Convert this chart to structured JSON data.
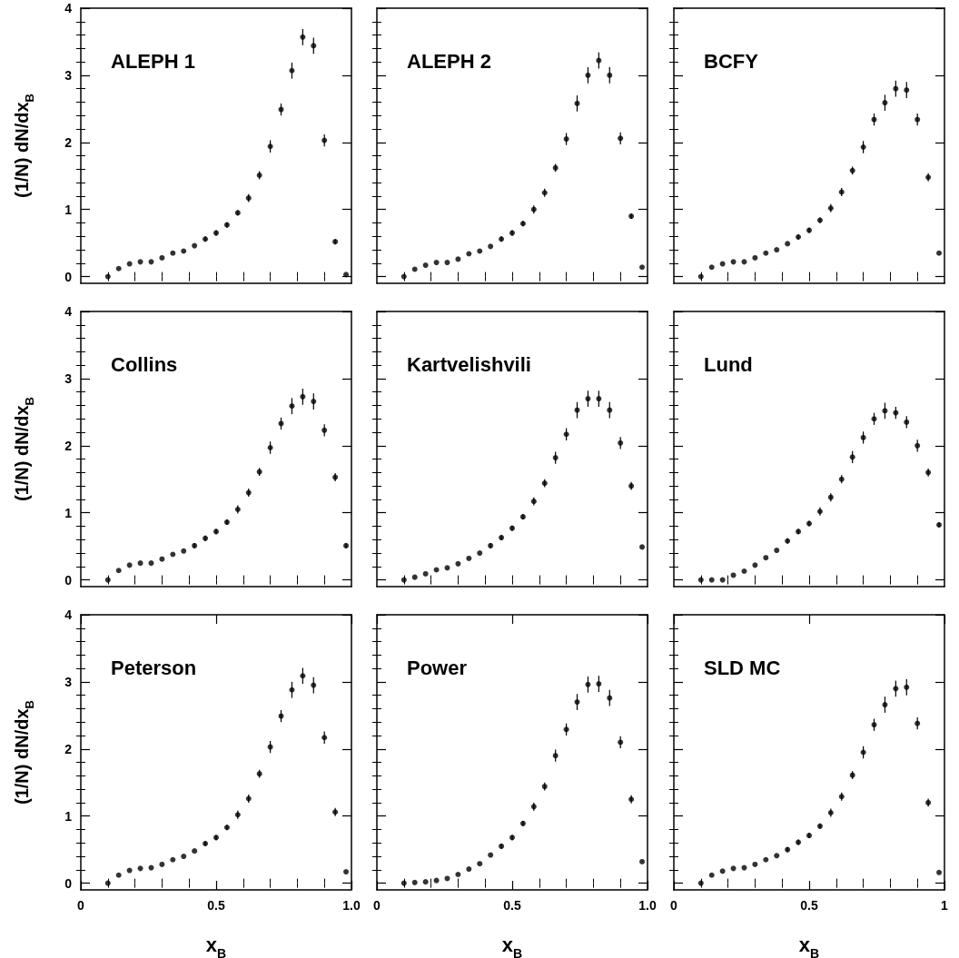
{
  "chart_data": [
    {
      "type": "scatter",
      "title": "ALEPH 1",
      "ylabel": "(1/N) dN/dx$_{B}$",
      "marker": "circle",
      "tick_labels": "y",
      "x": [
        0.1,
        0.14,
        0.18,
        0.22,
        0.26,
        0.3,
        0.34,
        0.38,
        0.42,
        0.46,
        0.5,
        0.54,
        0.58,
        0.62,
        0.66,
        0.7,
        0.74,
        0.78,
        0.82,
        0.86,
        0.9,
        0.94,
        0.98
      ],
      "series": [
        {
          "color": "#000000",
          "values": [
            0.0,
            0.12,
            0.19,
            0.22,
            0.22,
            0.28,
            0.35,
            0.38,
            0.46,
            0.56,
            0.65,
            0.77,
            0.95,
            1.17,
            1.51,
            1.94,
            2.49,
            3.07,
            3.57,
            3.44,
            2.03,
            0.52,
            0.03
          ],
          "errors": [
            null,
            null,
            null,
            null,
            null,
            null,
            null,
            null,
            null,
            0.04,
            0.04,
            0.04,
            0.04,
            0.06,
            0.06,
            0.09,
            0.09,
            0.12,
            0.12,
            0.12,
            0.09,
            0.04,
            null
          ]
        }
      ],
      "xlim": [
        0,
        1
      ],
      "xticks": [
        {
          "value": 0.1,
          "label": null
        },
        {
          "value": 0.2,
          "label": null
        },
        {
          "value": 0.3,
          "label": null
        },
        {
          "value": 0.4,
          "label": null
        },
        {
          "value": 0.5,
          "label": null
        },
        {
          "value": 0.6,
          "label": null
        },
        {
          "value": 0.7,
          "label": null
        },
        {
          "value": 0.8,
          "label": null
        },
        {
          "value": 0.9,
          "label": null
        }
      ],
      "ylim": [
        -0.1,
        4
      ],
      "yticks": [
        {
          "value": 0,
          "label": "0"
        },
        {
          "value": 0.2,
          "label": null
        },
        {
          "value": 0.4,
          "label": null
        },
        {
          "value": 0.6,
          "label": null
        },
        {
          "value": 0.8,
          "label": null
        },
        1,
        {
          "value": 1.2,
          "label": null
        },
        {
          "value": 1.4,
          "label": null
        },
        {
          "value": 1.6,
          "label": null
        },
        {
          "value": 1.8,
          "label": null
        },
        2,
        {
          "value": 2.2,
          "label": null
        },
        {
          "value": 2.4,
          "label": null
        },
        {
          "value": 2.6,
          "label": null
        },
        {
          "value": 2.8,
          "label": null
        },
        3,
        {
          "value": 3.2,
          "label": null
        },
        {
          "value": 3.4,
          "label": null
        },
        {
          "value": 3.6,
          "label": null
        },
        {
          "value": 3.8,
          "label": null
        },
        4
      ]
    },
    {
      "type": "scatter",
      "title": "ALEPH 2",
      "marker": "circle",
      "tick_labels": false,
      "x": [
        0.1,
        0.14,
        0.18,
        0.22,
        0.26,
        0.3,
        0.34,
        0.38,
        0.42,
        0.46,
        0.5,
        0.54,
        0.58,
        0.62,
        0.66,
        0.7,
        0.74,
        0.78,
        0.82,
        0.86,
        0.9,
        0.94,
        0.98
      ],
      "series": [
        {
          "color": "#000000",
          "values": [
            0.0,
            0.11,
            0.17,
            0.21,
            0.21,
            0.26,
            0.34,
            0.38,
            0.45,
            0.56,
            0.65,
            0.79,
            1.0,
            1.25,
            1.62,
            2.05,
            2.58,
            3.0,
            3.22,
            3.0,
            2.06,
            0.9,
            0.14
          ],
          "errors": [
            null,
            null,
            null,
            null,
            null,
            null,
            null,
            null,
            null,
            0.04,
            0.04,
            0.04,
            0.06,
            0.06,
            0.06,
            0.09,
            0.12,
            0.12,
            0.12,
            0.12,
            0.09,
            0.04,
            null
          ]
        }
      ],
      "xlim": [
        0,
        1
      ],
      "xticks": [
        {
          "value": 0.1,
          "label": null
        },
        {
          "value": 0.2,
          "label": null
        },
        {
          "value": 0.3,
          "label": null
        },
        {
          "value": 0.4,
          "label": null
        },
        {
          "value": 0.5,
          "label": null
        },
        {
          "value": 0.6,
          "label": null
        },
        {
          "value": 0.7,
          "label": null
        },
        {
          "value": 0.8,
          "label": null
        },
        {
          "value": 0.9,
          "label": null
        }
      ],
      "ylim": [
        -0.1,
        4
      ],
      "yticks": [
        0,
        {
          "value": 0.2,
          "label": null
        },
        {
          "value": 0.4,
          "label": null
        },
        {
          "value": 0.6,
          "label": null
        },
        {
          "value": 0.8,
          "label": null
        },
        1,
        {
          "value": 1.2,
          "label": null
        },
        {
          "value": 1.4,
          "label": null
        },
        {
          "value": 1.6,
          "label": null
        },
        {
          "value": 1.8,
          "label": null
        },
        2,
        {
          "value": 2.2,
          "label": null
        },
        {
          "value": 2.4,
          "label": null
        },
        {
          "value": 2.6,
          "label": null
        },
        {
          "value": 2.8,
          "label": null
        },
        3,
        {
          "value": 3.2,
          "label": null
        },
        {
          "value": 3.4,
          "label": null
        },
        {
          "value": 3.6,
          "label": null
        },
        {
          "value": 3.8,
          "label": null
        },
        4
      ]
    },
    {
      "type": "scatter",
      "title": "BCFY",
      "marker": "circle",
      "tick_labels": false,
      "x": [
        0.1,
        0.14,
        0.18,
        0.22,
        0.26,
        0.3,
        0.34,
        0.38,
        0.42,
        0.46,
        0.5,
        0.54,
        0.58,
        0.62,
        0.66,
        0.7,
        0.74,
        0.78,
        0.82,
        0.86,
        0.9,
        0.94,
        0.98
      ],
      "series": [
        {
          "color": "#000000",
          "values": [
            0.0,
            0.14,
            0.19,
            0.22,
            0.22,
            0.28,
            0.35,
            0.4,
            0.49,
            0.59,
            0.69,
            0.84,
            1.02,
            1.26,
            1.58,
            1.93,
            2.34,
            2.59,
            2.8,
            2.78,
            2.34,
            1.48,
            0.35
          ],
          "errors": [
            null,
            null,
            null,
            null,
            null,
            null,
            null,
            null,
            null,
            0.04,
            0.04,
            0.04,
            0.06,
            0.06,
            0.06,
            0.09,
            0.09,
            0.12,
            0.12,
            0.12,
            0.09,
            0.06,
            null
          ]
        }
      ],
      "xlim": [
        0,
        1
      ],
      "xticks": [
        {
          "value": 0.1,
          "label": null
        },
        {
          "value": 0.2,
          "label": null
        },
        {
          "value": 0.3,
          "label": null
        },
        {
          "value": 0.4,
          "label": null
        },
        {
          "value": 0.5,
          "label": null
        },
        {
          "value": 0.6,
          "label": null
        },
        {
          "value": 0.7,
          "label": null
        },
        {
          "value": 0.8,
          "label": null
        },
        {
          "value": 0.9,
          "label": null
        }
      ],
      "ylim": [
        -0.1,
        4
      ],
      "yticks": [
        0,
        {
          "value": 0.2,
          "label": null
        },
        {
          "value": 0.4,
          "label": null
        },
        {
          "value": 0.6,
          "label": null
        },
        {
          "value": 0.8,
          "label": null
        },
        1,
        {
          "value": 1.2,
          "label": null
        },
        {
          "value": 1.4,
          "label": null
        },
        {
          "value": 1.6,
          "label": null
        },
        {
          "value": 1.8,
          "label": null
        },
        2,
        {
          "value": 2.2,
          "label": null
        },
        {
          "value": 2.4,
          "label": null
        },
        {
          "value": 2.6,
          "label": null
        },
        {
          "value": 2.8,
          "label": null
        },
        3,
        {
          "value": 3.2,
          "label": null
        },
        {
          "value": 3.4,
          "label": null
        },
        {
          "value": 3.6,
          "label": null
        },
        {
          "value": 3.8,
          "label": null
        },
        4
      ]
    },
    {
      "type": "scatter",
      "title": "Collins",
      "ylabel": "(1/N) dN/dx$_{B}$",
      "marker": "circle",
      "tick_labels": "y",
      "x": [
        0.1,
        0.14,
        0.18,
        0.22,
        0.26,
        0.3,
        0.34,
        0.38,
        0.42,
        0.46,
        0.5,
        0.54,
        0.58,
        0.62,
        0.66,
        0.7,
        0.74,
        0.78,
        0.82,
        0.86,
        0.9,
        0.94,
        0.98
      ],
      "series": [
        {
          "color": "#000000",
          "values": [
            0.0,
            0.14,
            0.22,
            0.25,
            0.25,
            0.31,
            0.38,
            0.43,
            0.51,
            0.62,
            0.72,
            0.86,
            1.05,
            1.3,
            1.61,
            1.97,
            2.33,
            2.59,
            2.73,
            2.66,
            2.23,
            1.53,
            0.51
          ],
          "errors": [
            null,
            null,
            null,
            null,
            null,
            null,
            null,
            null,
            0.04,
            0.04,
            0.04,
            0.04,
            0.06,
            0.06,
            0.06,
            0.09,
            0.09,
            0.12,
            0.12,
            0.12,
            0.09,
            0.06,
            0.04
          ]
        }
      ],
      "xlim": [
        0,
        1
      ],
      "xticks": [
        {
          "value": 0.1,
          "label": null
        },
        {
          "value": 0.2,
          "label": null
        },
        {
          "value": 0.3,
          "label": null
        },
        {
          "value": 0.4,
          "label": null
        },
        {
          "value": 0.5,
          "label": null
        },
        {
          "value": 0.6,
          "label": null
        },
        {
          "value": 0.7,
          "label": null
        },
        {
          "value": 0.8,
          "label": null
        },
        {
          "value": 0.9,
          "label": null
        }
      ],
      "ylim": [
        -0.1,
        4
      ],
      "yticks": [
        {
          "value": 0,
          "label": "0"
        },
        {
          "value": 0.2,
          "label": null
        },
        {
          "value": 0.4,
          "label": null
        },
        {
          "value": 0.6,
          "label": null
        },
        {
          "value": 0.8,
          "label": null
        },
        1,
        {
          "value": 1.2,
          "label": null
        },
        {
          "value": 1.4,
          "label": null
        },
        {
          "value": 1.6,
          "label": null
        },
        {
          "value": 1.8,
          "label": null
        },
        2,
        {
          "value": 2.2,
          "label": null
        },
        {
          "value": 2.4,
          "label": null
        },
        {
          "value": 2.6,
          "label": null
        },
        {
          "value": 2.8,
          "label": null
        },
        3,
        {
          "value": 3.2,
          "label": null
        },
        {
          "value": 3.4,
          "label": null
        },
        {
          "value": 3.6,
          "label": null
        },
        {
          "value": 3.8,
          "label": null
        },
        4
      ]
    },
    {
      "type": "scatter",
      "title": "Kartvelishvili",
      "marker": "circle",
      "tick_labels": false,
      "x": [
        0.1,
        0.14,
        0.18,
        0.22,
        0.26,
        0.3,
        0.34,
        0.38,
        0.42,
        0.46,
        0.5,
        0.54,
        0.58,
        0.62,
        0.66,
        0.7,
        0.74,
        0.78,
        0.82,
        0.86,
        0.9,
        0.94,
        0.98
      ],
      "series": [
        {
          "color": "#000000",
          "values": [
            0.0,
            0.04,
            0.09,
            0.15,
            0.18,
            0.24,
            0.32,
            0.4,
            0.51,
            0.63,
            0.77,
            0.94,
            1.17,
            1.44,
            1.82,
            2.17,
            2.53,
            2.7,
            2.7,
            2.53,
            2.04,
            1.4,
            0.49
          ],
          "errors": [
            null,
            null,
            null,
            null,
            null,
            null,
            null,
            null,
            0.04,
            0.04,
            0.04,
            0.04,
            0.06,
            0.06,
            0.09,
            0.09,
            0.12,
            0.12,
            0.12,
            0.12,
            0.09,
            0.06,
            null
          ]
        }
      ],
      "xlim": [
        0,
        1
      ],
      "xticks": [
        {
          "value": 0.1,
          "label": null
        },
        {
          "value": 0.2,
          "label": null
        },
        {
          "value": 0.3,
          "label": null
        },
        {
          "value": 0.4,
          "label": null
        },
        {
          "value": 0.5,
          "label": null
        },
        {
          "value": 0.6,
          "label": null
        },
        {
          "value": 0.7,
          "label": null
        },
        {
          "value": 0.8,
          "label": null
        },
        {
          "value": 0.9,
          "label": null
        }
      ],
      "ylim": [
        -0.1,
        4
      ],
      "yticks": [
        0,
        {
          "value": 0.2,
          "label": null
        },
        {
          "value": 0.4,
          "label": null
        },
        {
          "value": 0.6,
          "label": null
        },
        {
          "value": 0.8,
          "label": null
        },
        1,
        {
          "value": 1.2,
          "label": null
        },
        {
          "value": 1.4,
          "label": null
        },
        {
          "value": 1.6,
          "label": null
        },
        {
          "value": 1.8,
          "label": null
        },
        2,
        {
          "value": 2.2,
          "label": null
        },
        {
          "value": 2.4,
          "label": null
        },
        {
          "value": 2.6,
          "label": null
        },
        {
          "value": 2.8,
          "label": null
        },
        3,
        {
          "value": 3.2,
          "label": null
        },
        {
          "value": 3.4,
          "label": null
        },
        {
          "value": 3.6,
          "label": null
        },
        {
          "value": 3.8,
          "label": null
        },
        4
      ]
    },
    {
      "type": "scatter",
      "title": "Lund",
      "marker": "circle",
      "tick_labels": false,
      "x": [
        0.1,
        0.14,
        0.18,
        0.22,
        0.26,
        0.3,
        0.34,
        0.38,
        0.42,
        0.46,
        0.5,
        0.54,
        0.58,
        0.62,
        0.66,
        0.7,
        0.74,
        0.78,
        0.82,
        0.86,
        0.9,
        0.94,
        0.98
      ],
      "series": [
        {
          "color": "#000000",
          "values": [
            0.0,
            0.0,
            0.0,
            0.07,
            0.13,
            0.22,
            0.33,
            0.44,
            0.58,
            0.72,
            0.84,
            1.02,
            1.23,
            1.5,
            1.83,
            2.12,
            2.4,
            2.52,
            2.49,
            2.35,
            2.0,
            1.6,
            0.82
          ],
          "errors": [
            null,
            null,
            null,
            null,
            null,
            null,
            null,
            null,
            0.04,
            0.04,
            0.04,
            0.06,
            0.06,
            0.06,
            0.09,
            0.09,
            0.09,
            0.12,
            0.09,
            0.09,
            0.09,
            0.06,
            0.04
          ]
        }
      ],
      "xlim": [
        0,
        1
      ],
      "xticks": [
        {
          "value": 0.1,
          "label": null
        },
        {
          "value": 0.2,
          "label": null
        },
        {
          "value": 0.3,
          "label": null
        },
        {
          "value": 0.4,
          "label": null
        },
        {
          "value": 0.5,
          "label": null
        },
        {
          "value": 0.6,
          "label": null
        },
        {
          "value": 0.7,
          "label": null
        },
        {
          "value": 0.8,
          "label": null
        },
        {
          "value": 0.9,
          "label": null
        }
      ],
      "ylim": [
        -0.1,
        4
      ],
      "yticks": [
        0,
        {
          "value": 0.2,
          "label": null
        },
        {
          "value": 0.4,
          "label": null
        },
        {
          "value": 0.6,
          "label": null
        },
        {
          "value": 0.8,
          "label": null
        },
        1,
        {
          "value": 1.2,
          "label": null
        },
        {
          "value": 1.4,
          "label": null
        },
        {
          "value": 1.6,
          "label": null
        },
        {
          "value": 1.8,
          "label": null
        },
        2,
        {
          "value": 2.2,
          "label": null
        },
        {
          "value": 2.4,
          "label": null
        },
        {
          "value": 2.6,
          "label": null
        },
        {
          "value": 2.8,
          "label": null
        },
        3,
        {
          "value": 3.2,
          "label": null
        },
        {
          "value": 3.4,
          "label": null
        },
        {
          "value": 3.6,
          "label": null
        },
        {
          "value": 3.8,
          "label": null
        },
        4
      ]
    },
    {
      "type": "scatter",
      "title": "Peterson",
      "ylabel": "(1/N) dN/dx$_{B}$",
      "xlabel": "x$_{B}$",
      "marker": "circle",
      "x": [
        0.1,
        0.14,
        0.18,
        0.22,
        0.26,
        0.3,
        0.34,
        0.38,
        0.42,
        0.46,
        0.5,
        0.54,
        0.58,
        0.62,
        0.66,
        0.7,
        0.74,
        0.78,
        0.82,
        0.86,
        0.9,
        0.94,
        0.98
      ],
      "series": [
        {
          "color": "#000000",
          "values": [
            0.0,
            0.12,
            0.19,
            0.22,
            0.23,
            0.28,
            0.35,
            0.4,
            0.48,
            0.59,
            0.68,
            0.83,
            1.02,
            1.26,
            1.63,
            2.03,
            2.49,
            2.88,
            3.09,
            2.95,
            2.17,
            1.06,
            0.17
          ],
          "errors": [
            null,
            null,
            null,
            null,
            null,
            null,
            null,
            null,
            null,
            0.04,
            0.04,
            0.04,
            0.06,
            0.06,
            0.06,
            0.09,
            0.09,
            0.12,
            0.12,
            0.12,
            0.09,
            0.06,
            null
          ]
        }
      ],
      "xlim": [
        0,
        1
      ],
      "xticks": [
        {
          "value": 0,
          "label": "0"
        },
        {
          "value": 0.1,
          "label": null
        },
        {
          "value": 0.2,
          "label": null
        },
        {
          "value": 0.3,
          "label": null
        },
        {
          "value": 0.4,
          "label": null
        },
        {
          "value": 0.5,
          "label": "0.5"
        },
        {
          "value": 0.6,
          "label": null
        },
        {
          "value": 0.7,
          "label": null
        },
        {
          "value": 0.8,
          "label": null
        },
        {
          "value": 0.9,
          "label": null
        },
        {
          "value": 1,
          "label": "1.0"
        }
      ],
      "ylim": [
        -0.1,
        4
      ],
      "yticks": [
        {
          "value": 0,
          "label": "0"
        },
        {
          "value": 0.2,
          "label": null
        },
        {
          "value": 0.4,
          "label": null
        },
        {
          "value": 0.6,
          "label": null
        },
        {
          "value": 0.8,
          "label": null
        },
        1,
        {
          "value": 1.2,
          "label": null
        },
        {
          "value": 1.4,
          "label": null
        },
        {
          "value": 1.6,
          "label": null
        },
        {
          "value": 1.8,
          "label": null
        },
        2,
        {
          "value": 2.2,
          "label": null
        },
        {
          "value": 2.4,
          "label": null
        },
        {
          "value": 2.6,
          "label": null
        },
        {
          "value": 2.8,
          "label": null
        },
        3,
        {
          "value": 3.2,
          "label": null
        },
        {
          "value": 3.4,
          "label": null
        },
        {
          "value": 3.6,
          "label": null
        },
        {
          "value": 3.8,
          "label": null
        },
        4
      ]
    },
    {
      "type": "scatter",
      "title": "Power",
      "xlabel": "x$_{B}$",
      "marker": "circle",
      "tick_labels": "x",
      "x": [
        0.1,
        0.14,
        0.18,
        0.22,
        0.26,
        0.3,
        0.34,
        0.38,
        0.42,
        0.46,
        0.5,
        0.54,
        0.58,
        0.62,
        0.66,
        0.7,
        0.74,
        0.78,
        0.82,
        0.86,
        0.9,
        0.94,
        0.98
      ],
      "series": [
        {
          "color": "#000000",
          "values": [
            0.0,
            0.01,
            0.02,
            0.04,
            0.07,
            0.13,
            0.21,
            0.29,
            0.42,
            0.55,
            0.68,
            0.89,
            1.14,
            1.44,
            1.9,
            2.29,
            2.7,
            2.96,
            2.97,
            2.76,
            2.1,
            1.25,
            0.32
          ],
          "errors": [
            null,
            null,
            null,
            null,
            null,
            null,
            null,
            null,
            null,
            0.04,
            0.04,
            0.04,
            0.06,
            0.06,
            0.09,
            0.09,
            0.12,
            0.12,
            0.12,
            0.12,
            0.09,
            0.06,
            null
          ]
        }
      ],
      "xlim": [
        0,
        1
      ],
      "xticks": [
        {
          "value": 0,
          "label": "0"
        },
        {
          "value": 0.1,
          "label": null
        },
        {
          "value": 0.2,
          "label": null
        },
        {
          "value": 0.3,
          "label": null
        },
        {
          "value": 0.4,
          "label": null
        },
        {
          "value": 0.5,
          "label": "0.5"
        },
        {
          "value": 0.6,
          "label": null
        },
        {
          "value": 0.7,
          "label": null
        },
        {
          "value": 0.8,
          "label": null
        },
        {
          "value": 0.9,
          "label": null
        },
        {
          "value": 1,
          "label": "1.0"
        }
      ],
      "ylim": [
        -0.1,
        4
      ],
      "yticks": [
        0,
        {
          "value": 0.2,
          "label": null
        },
        {
          "value": 0.4,
          "label": null
        },
        {
          "value": 0.6,
          "label": null
        },
        {
          "value": 0.8,
          "label": null
        },
        1,
        {
          "value": 1.2,
          "label": null
        },
        {
          "value": 1.4,
          "label": null
        },
        {
          "value": 1.6,
          "label": null
        },
        {
          "value": 1.8,
          "label": null
        },
        2,
        {
          "value": 2.2,
          "label": null
        },
        {
          "value": 2.4,
          "label": null
        },
        {
          "value": 2.6,
          "label": null
        },
        {
          "value": 2.8,
          "label": null
        },
        3,
        {
          "value": 3.2,
          "label": null
        },
        {
          "value": 3.4,
          "label": null
        },
        {
          "value": 3.6,
          "label": null
        },
        {
          "value": 3.8,
          "label": null
        },
        4
      ]
    },
    {
      "type": "scatter",
      "title": "SLD MC",
      "xlabel": "x$_{B}$",
      "marker": "circle",
      "tick_labels": "x",
      "x": [
        0.1,
        0.14,
        0.18,
        0.22,
        0.26,
        0.3,
        0.34,
        0.38,
        0.42,
        0.46,
        0.5,
        0.54,
        0.58,
        0.62,
        0.66,
        0.7,
        0.74,
        0.78,
        0.82,
        0.86,
        0.9,
        0.94,
        0.98
      ],
      "series": [
        {
          "color": "#000000",
          "values": [
            0.0,
            0.12,
            0.18,
            0.22,
            0.23,
            0.28,
            0.35,
            0.41,
            0.5,
            0.61,
            0.71,
            0.85,
            1.05,
            1.29,
            1.61,
            1.95,
            2.36,
            2.66,
            2.9,
            2.92,
            2.38,
            1.2,
            0.16
          ],
          "errors": [
            null,
            null,
            null,
            null,
            null,
            null,
            null,
            null,
            0.04,
            0.04,
            0.04,
            0.04,
            0.06,
            0.06,
            0.06,
            0.09,
            0.09,
            0.12,
            0.12,
            0.12,
            0.09,
            0.06,
            null
          ]
        }
      ],
      "xlim": [
        0,
        1
      ],
      "xticks": [
        {
          "value": 0,
          "label": "0"
        },
        {
          "value": 0.1,
          "label": null
        },
        {
          "value": 0.2,
          "label": null
        },
        {
          "value": 0.3,
          "label": null
        },
        {
          "value": 0.4,
          "label": null
        },
        {
          "value": 0.5,
          "label": "0.5"
        },
        {
          "value": 0.6,
          "label": null
        },
        {
          "value": 0.7,
          "label": null
        },
        {
          "value": 0.8,
          "label": null
        },
        {
          "value": 0.9,
          "label": null
        },
        {
          "value": 1,
          "label": "1"
        }
      ],
      "ylim": [
        -0.1,
        4
      ],
      "yticks": [
        0,
        {
          "value": 0.2,
          "label": null
        },
        {
          "value": 0.4,
          "label": null
        },
        {
          "value": 0.6,
          "label": null
        },
        {
          "value": 0.8,
          "label": null
        },
        1,
        {
          "value": 1.2,
          "label": null
        },
        {
          "value": 1.4,
          "label": null
        },
        {
          "value": 1.6,
          "label": null
        },
        {
          "value": 1.8,
          "label": null
        },
        2,
        {
          "value": 2.2,
          "label": null
        },
        {
          "value": 2.4,
          "label": null
        },
        {
          "value": 2.6,
          "label": null
        },
        {
          "value": 2.8,
          "label": null
        },
        3,
        {
          "value": 3.2,
          "label": null
        },
        {
          "value": 3.4,
          "label": null
        },
        {
          "value": 3.6,
          "label": null
        },
        {
          "value": 3.8,
          "label": null
        },
        4
      ]
    }
  ]
}
